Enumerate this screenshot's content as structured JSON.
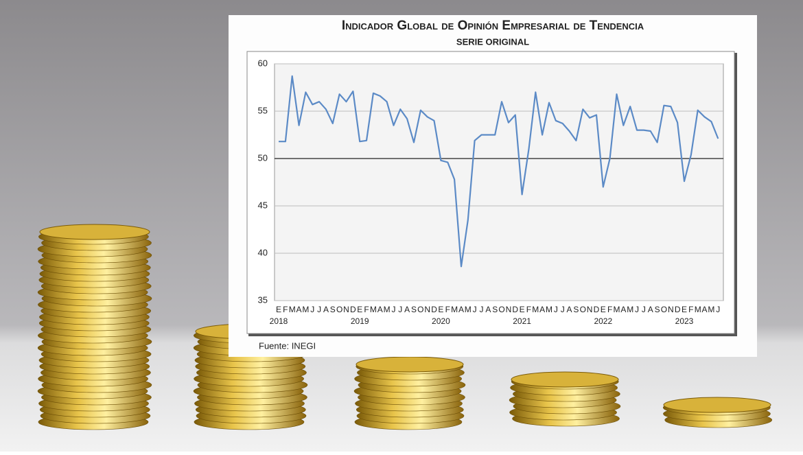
{
  "chart_data": {
    "type": "line",
    "title": "Indicador Global de Opinión Empresarial de Tendencia",
    "subtitle": "SERIE ORIGINAL",
    "source": "Fuente: INEGI",
    "categories": [
      "E",
      "F",
      "M",
      "A",
      "M",
      "J",
      "J",
      "A",
      "S",
      "O",
      "N",
      "D",
      "E",
      "F",
      "M",
      "A",
      "M",
      "J",
      "J",
      "A",
      "S",
      "O",
      "N",
      "D",
      "E",
      "F",
      "M",
      "A",
      "M",
      "J",
      "J",
      "A",
      "S",
      "O",
      "N",
      "D",
      "E",
      "F",
      "M",
      "A",
      "M",
      "J",
      "J",
      "A",
      "S",
      "O",
      "N",
      "D",
      "E",
      "F",
      "M",
      "A",
      "M",
      "J",
      "J",
      "A",
      "S",
      "O",
      "N",
      "D",
      "E",
      "F",
      "M",
      "A",
      "M",
      "J"
    ],
    "year_labels": [
      "2018",
      "2019",
      "2020",
      "2021",
      "2022",
      "2023"
    ],
    "values": [
      51.8,
      51.8,
      58.7,
      53.5,
      57.0,
      55.7,
      56.0,
      55.2,
      53.7,
      56.8,
      56.0,
      57.1,
      51.8,
      51.9,
      56.9,
      56.6,
      56.0,
      53.5,
      55.2,
      54.2,
      51.7,
      55.1,
      54.4,
      54.0,
      49.8,
      49.6,
      47.8,
      38.6,
      43.5,
      51.9,
      52.5,
      52.5,
      52.5,
      56.0,
      53.8,
      54.6,
      46.2,
      51.0,
      57.0,
      52.5,
      55.9,
      54.0,
      53.7,
      52.9,
      51.9,
      55.2,
      54.3,
      54.6,
      47.0,
      50.0,
      56.8,
      53.5,
      55.5,
      53.0,
      53.0,
      52.9,
      51.7,
      55.6,
      55.5,
      53.8,
      47.6,
      50.4,
      55.1,
      54.4,
      53.9,
      52.1
    ],
    "color": "#5b8ac6",
    "ylim": [
      35,
      60
    ],
    "yticks": [
      35,
      40,
      45,
      50,
      55,
      60
    ],
    "grid": true
  }
}
